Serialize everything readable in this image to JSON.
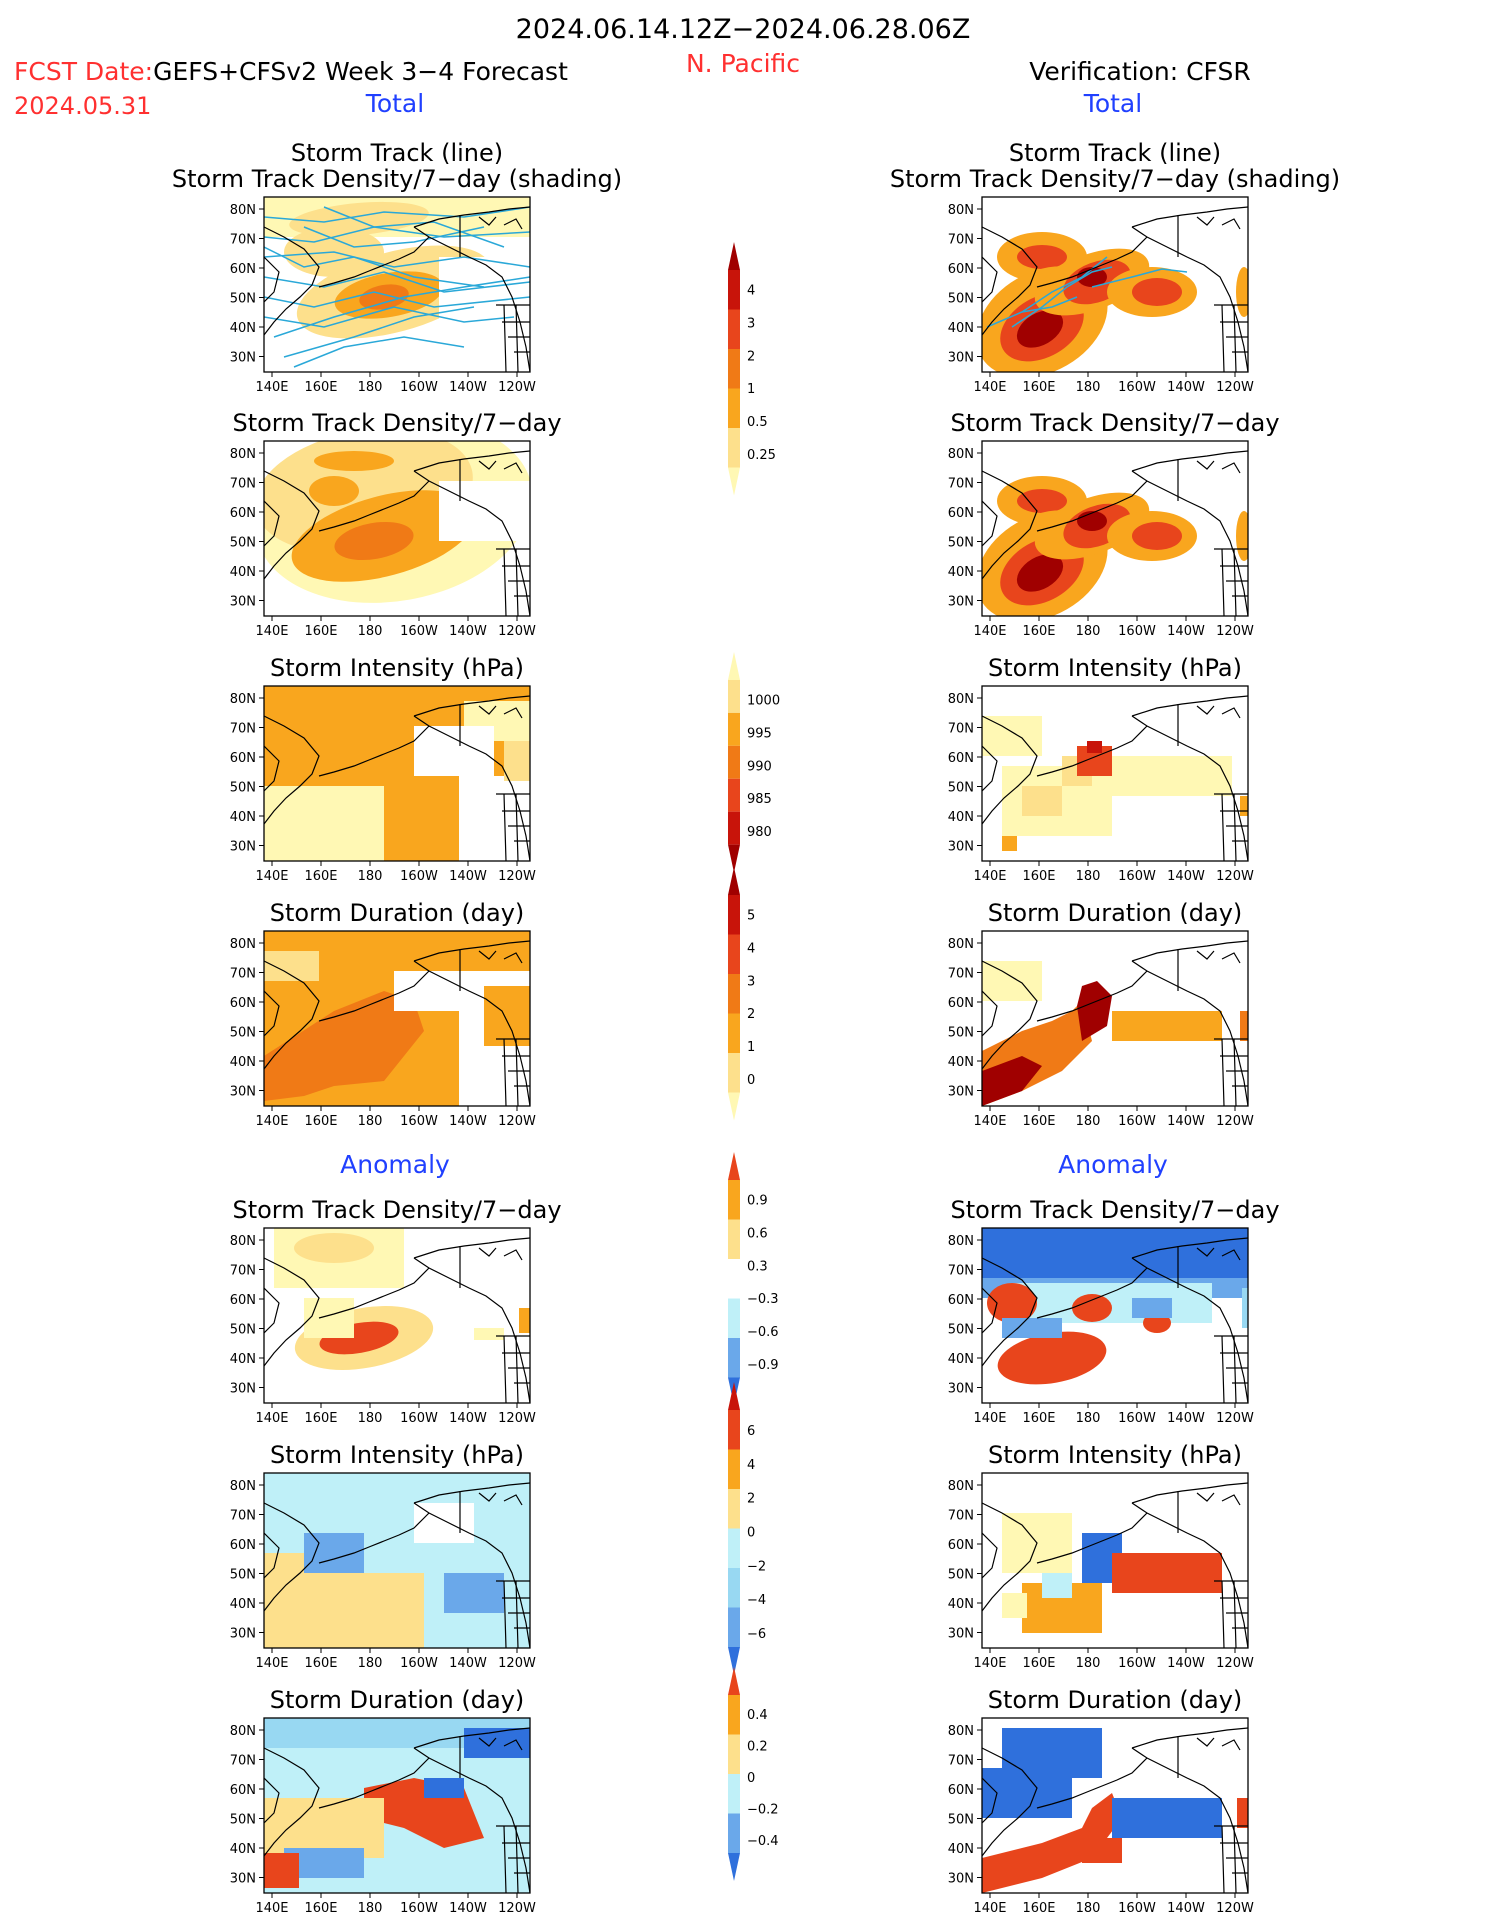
{
  "header": {
    "date_range": "2024.06.14.12Z−2024.06.28.06Z",
    "fcst_prefix": "FCST Date:",
    "forecast_title": "GEFS+CFSv2 Week 3−4 Forecast",
    "region": "N. Pacific",
    "fcst_date": "2024.05.31",
    "verification_title": "Verification: CFSR"
  },
  "sections": {
    "total_label": "Total",
    "anomaly_label": "Anomaly"
  },
  "panel_titles": {
    "track_line": "Storm Track (line)",
    "track_density_shading": "Storm Track Density/7−day (shading)",
    "track_density": "Storm Track Density/7−day",
    "intensity": "Storm Intensity (hPa)",
    "duration": "Storm Duration (day)"
  },
  "map_axes": {
    "lat_ticks": [
      "80N",
      "70N",
      "60N",
      "50N",
      "40N",
      "30N"
    ],
    "lon_ticks": [
      "140E",
      "160E",
      "180",
      "160W",
      "140W",
      "120W"
    ]
  },
  "colorbars": {
    "density_total": [
      "4",
      "3",
      "2",
      "1",
      "0.5",
      "0.25"
    ],
    "intensity_total": [
      "1000",
      "995",
      "990",
      "985",
      "980"
    ],
    "duration_total": [
      "5",
      "4",
      "3",
      "2",
      "1",
      "0"
    ],
    "density_anom": [
      "0.9",
      "0.6",
      "0.3",
      "−0.3",
      "−0.6",
      "−0.9"
    ],
    "intensity_anom": [
      "6",
      "4",
      "2",
      "0",
      "−2",
      "−4",
      "−6"
    ],
    "duration_anom": [
      "0.4",
      "0.2",
      "0",
      "−0.2",
      "−0.4"
    ]
  },
  "colors": {
    "warm": [
      "#fff8b4",
      "#fde08c",
      "#f9a61e",
      "#f07a16",
      "#e8451c",
      "#c8140a",
      "#a00000"
    ],
    "cool": [
      "#bff0f8",
      "#98d8f2",
      "#6aa8ea",
      "#2f70dc",
      "#1050d0"
    ],
    "title_blue": "#2040ff",
    "title_red": "#ff3030",
    "track_line": "#2aa8d8"
  }
}
